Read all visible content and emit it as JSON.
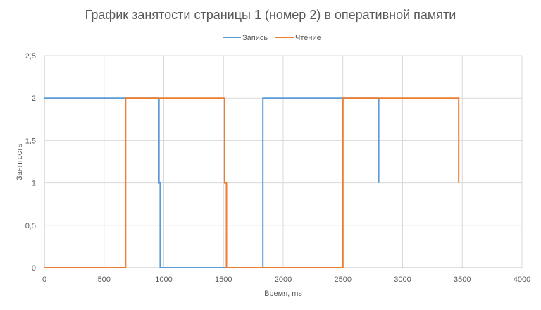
{
  "chart_data": {
    "type": "line",
    "title": "График занятости страницы 1 (номер 2) в оперативной памяти",
    "xlabel": "Время,  ms",
    "ylabel": "Занятость",
    "xlim": [
      0,
      4000
    ],
    "ylim": [
      0,
      2.5
    ],
    "x_ticks": [
      0,
      500,
      1000,
      1500,
      2000,
      2500,
      3000,
      3500,
      4000
    ],
    "x_tick_labels": [
      "0",
      "500",
      "1000",
      "1500",
      "2000",
      "2500",
      "3000",
      "3500",
      "4000"
    ],
    "y_ticks": [
      0,
      0.5,
      1,
      1.5,
      2,
      2.5
    ],
    "y_tick_labels": [
      "0",
      "0,5",
      "1",
      "1,5",
      "2",
      "2,5"
    ],
    "grid": {
      "vertical": true,
      "horizontal": true
    },
    "legend": "top",
    "series": [
      {
        "name": "Запись",
        "color": "#5B9BD5",
        "points": [
          [
            0,
            2
          ],
          [
            960,
            2
          ],
          [
            960,
            1
          ],
          [
            970,
            1
          ],
          [
            970,
            0
          ],
          [
            1830,
            0
          ],
          [
            1830,
            2
          ],
          [
            2800,
            2
          ],
          [
            2800,
            1
          ],
          [
            2800,
            2
          ]
        ]
      },
      {
        "name": "Чтение",
        "color": "#ED7D31",
        "points": [
          [
            0,
            0
          ],
          [
            680,
            0
          ],
          [
            680,
            2
          ],
          [
            1510,
            2
          ],
          [
            1510,
            1
          ],
          [
            1525,
            1
          ],
          [
            1525,
            0
          ],
          [
            2500,
            0
          ],
          [
            2500,
            2
          ],
          [
            3470,
            2
          ],
          [
            3470,
            1
          ]
        ]
      }
    ]
  }
}
